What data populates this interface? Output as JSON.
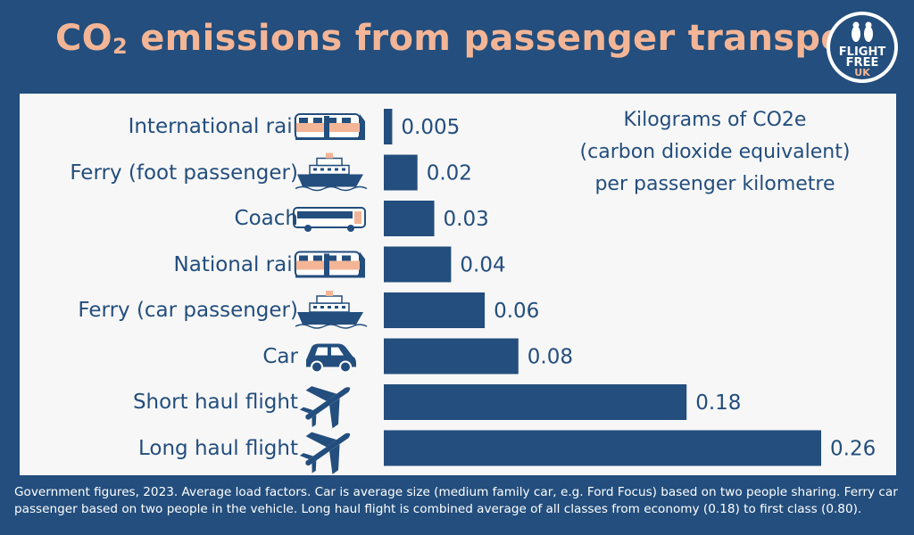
{
  "header": {
    "title_before": "CO",
    "title_sub": "2",
    "title_after": " emissions from passenger transport"
  },
  "logo": {
    "line1": "FLIGHT",
    "line2": "FREE",
    "line3": "UK"
  },
  "unit_label": {
    "line1": "Kilograms of CO2e",
    "line2": "(carbon dioxide equivalent)",
    "line3": "per passenger kilometre"
  },
  "footnote": "Government figures, 2023. Average load factors. Car is average size (medium family car, e.g. Ford Focus) based on two people sharing. Ferry car passenger based on two people in the vehicle. Long haul flight is combined average of all classes from economy (0.18) to first class (0.80).",
  "colors": {
    "bar": "#234e7d",
    "title": "#f3b596",
    "background": "#234e7d",
    "panel": "#f7f7f7",
    "icon_accent": "#f3b596"
  },
  "chart_data": {
    "type": "bar",
    "orientation": "horizontal",
    "categories": [
      "International rail",
      "Ferry (foot passenger)",
      "Coach",
      "National rail",
      "Ferry (car passenger)",
      "Car",
      "Short haul flight",
      "Long haul flight"
    ],
    "values": [
      0.005,
      0.02,
      0.03,
      0.04,
      0.06,
      0.08,
      0.18,
      0.26
    ],
    "value_labels": [
      "0.005",
      "0.02",
      "0.03",
      "0.04",
      "0.06",
      "0.08",
      "0.18",
      "0.26"
    ],
    "icons": [
      "train-icon",
      "ferry-icon",
      "coach-icon",
      "train-icon",
      "ferry-icon",
      "car-icon",
      "plane-icon",
      "plane-icon"
    ],
    "title": "",
    "xlabel": "",
    "ylabel": "",
    "xlim": [
      0,
      0.26
    ],
    "grid": false,
    "legend": "none"
  }
}
